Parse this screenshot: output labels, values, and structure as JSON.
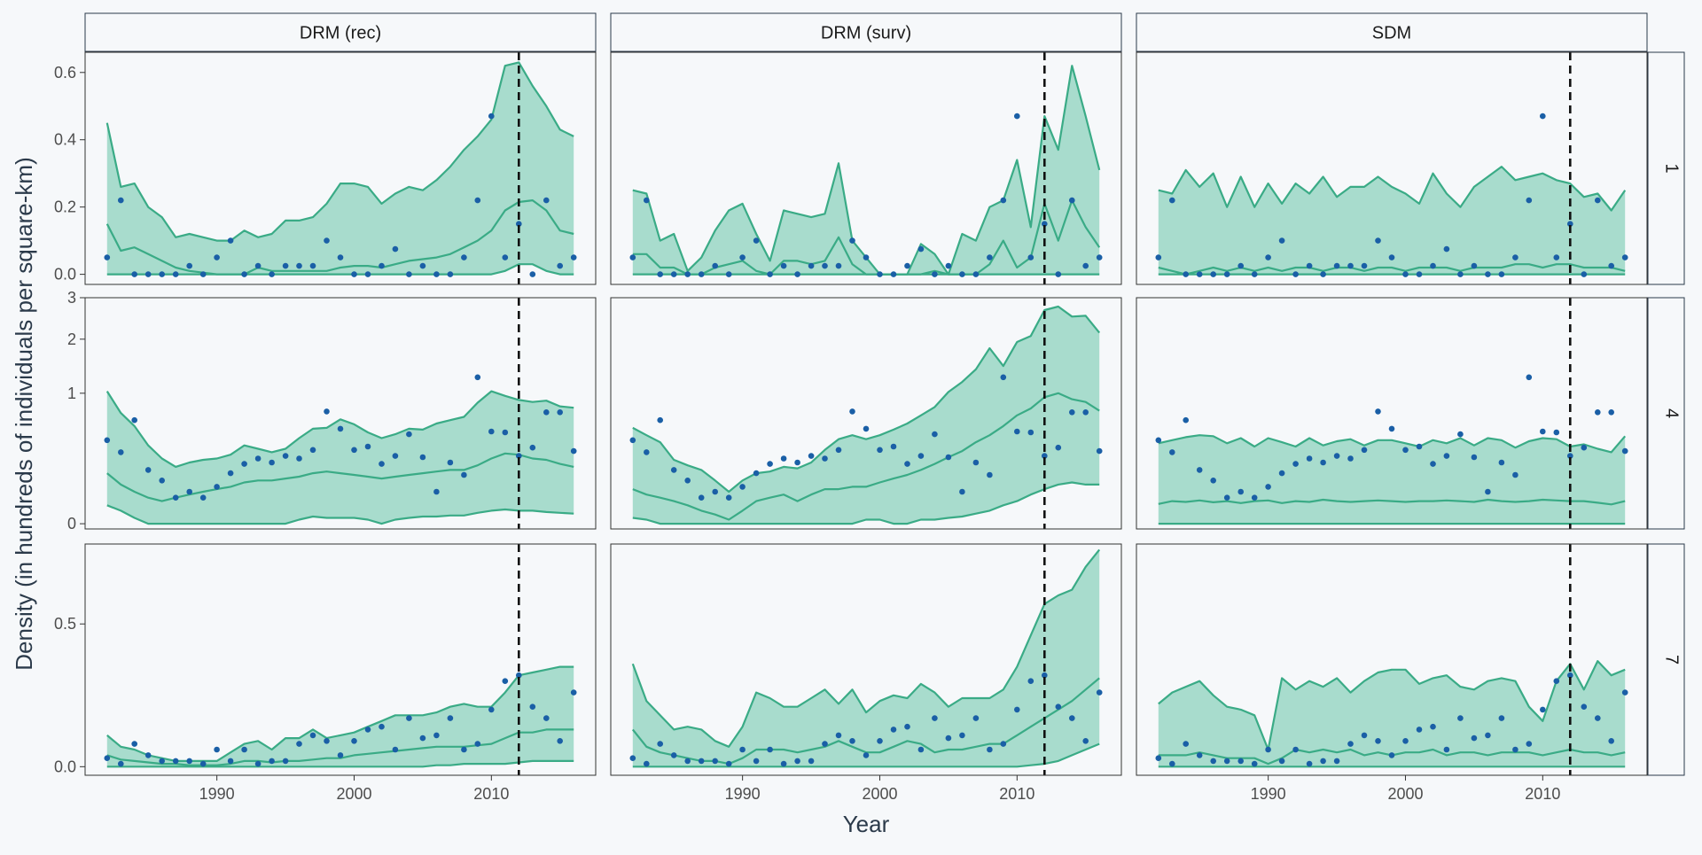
{
  "chart_data": {
    "type": "line",
    "xlabel": "Year",
    "ylabel": "Density (in hundreds of individuals per square-km)",
    "columns": [
      "DRM (rec)",
      "DRM (surv)",
      "SDM"
    ],
    "rows": [
      "1",
      "4",
      "7"
    ],
    "x_ticks": [
      1990,
      2000,
      2010
    ],
    "xlim": [
      1980.4,
      2017.6
    ],
    "vline_year": 2012,
    "y_scale_by_row": {
      "1": "linear",
      "4": "sqrt",
      "7": "linear"
    },
    "y_ticks_by_row": {
      "1": [
        0.0,
        0.2,
        0.4,
        0.6
      ],
      "4": [
        0,
        1,
        2,
        3
      ],
      "7": [
        0.0,
        0.5
      ]
    },
    "y_tick_labels_by_row": {
      "1": [
        "0.0",
        "0.2",
        "0.4",
        "0.6"
      ],
      "4": [
        "0",
        "1",
        "2",
        "3"
      ],
      "7": [
        "0.0",
        "0.5"
      ]
    },
    "ylim_by_row": {
      "1": [
        -0.03,
        0.66
      ],
      "4": [
        -0.02,
        3.0
      ],
      "7": [
        -0.03,
        0.78
      ]
    },
    "colors": {
      "ribbon": "#a8dccd",
      "line": "#3aab86",
      "points": "#1a5fa6",
      "vline": "#111111",
      "background": "#f6f8fa",
      "panel_border": "#333333"
    },
    "band_years": [
      1982,
      1983,
      1984,
      1985,
      1986,
      1987,
      1988,
      1989,
      1990,
      1991,
      1992,
      1993,
      1994,
      1995,
      1996,
      1997,
      1998,
      1999,
      2000,
      2001,
      2002,
      2003,
      2004,
      2005,
      2006,
      2007,
      2008,
      2009,
      2010,
      2011,
      2012,
      2013,
      2014,
      2015,
      2016
    ],
    "observed_years": [
      1982,
      1983,
      1984,
      1985,
      1986,
      1987,
      1988,
      1989,
      1990,
      1991,
      1992,
      1993,
      1994,
      1995,
      1996,
      1997,
      1998,
      1999,
      2000,
      2001,
      2002,
      2003,
      2004,
      2005,
      2006,
      2007,
      2008,
      2009,
      2010,
      2011,
      2012,
      2013,
      2014,
      2015,
      2016
    ],
    "observed": {
      "1": [
        0.05,
        0.22,
        0.0,
        0.0,
        0.0,
        0.0,
        0.025,
        0.0,
        0.05,
        0.1,
        0.0,
        0.025,
        0.0,
        0.025,
        0.025,
        0.025,
        0.1,
        0.05,
        0.0,
        0.0,
        0.025,
        0.075,
        0.0,
        0.025,
        0.0,
        0.0,
        0.05,
        0.22,
        0.47,
        0.05,
        0.15,
        0.0,
        0.22,
        0.025,
        0.05
      ],
      "4": [
        0.41,
        0.3,
        0.63,
        0.17,
        0.11,
        0.04,
        0.06,
        0.04,
        0.08,
        0.15,
        0.21,
        0.25,
        0.22,
        0.27,
        0.25,
        0.32,
        0.74,
        0.53,
        0.32,
        0.35,
        0.21,
        0.27,
        0.47,
        0.26,
        0.06,
        0.22,
        0.14,
        1.26,
        0.5,
        0.49,
        0.27,
        0.34,
        0.73,
        0.73,
        0.31
      ],
      "7": [
        0.03,
        0.01,
        0.08,
        0.04,
        0.02,
        0.02,
        0.02,
        0.01,
        0.06,
        0.02,
        0.06,
        0.01,
        0.02,
        0.02,
        0.08,
        0.11,
        0.09,
        0.04,
        0.09,
        0.13,
        0.14,
        0.06,
        0.17,
        0.1,
        0.11,
        0.17,
        0.06,
        0.08,
        0.2,
        0.3,
        0.32,
        0.21,
        0.17,
        0.09,
        0.26
      ]
    },
    "panels": [
      {
        "column": "DRM (rec)",
        "row": "1",
        "lower": [
          0.0,
          0.0,
          0.0,
          0.0,
          0.0,
          0.0,
          0.0,
          0.0,
          0.0,
          0.0,
          0.0,
          0.0,
          0.0,
          0.0,
          0.0,
          0.0,
          0.0,
          0.0,
          0.0,
          0.0,
          0.0,
          0.0,
          0.0,
          0.0,
          0.0,
          0.0,
          0.0,
          0.0,
          0.0,
          0.01,
          0.03,
          0.03,
          0.01,
          0.0,
          0.0
        ],
        "mid": [
          0.15,
          0.07,
          0.08,
          0.06,
          0.04,
          0.02,
          0.01,
          0.005,
          0.0,
          0.0,
          0.0,
          0.02,
          0.01,
          0.01,
          0.01,
          0.01,
          0.01,
          0.02,
          0.025,
          0.025,
          0.02,
          0.03,
          0.04,
          0.045,
          0.05,
          0.06,
          0.08,
          0.1,
          0.13,
          0.19,
          0.215,
          0.22,
          0.19,
          0.13,
          0.12
        ],
        "upper": [
          0.45,
          0.26,
          0.27,
          0.2,
          0.17,
          0.11,
          0.12,
          0.11,
          0.1,
          0.1,
          0.13,
          0.11,
          0.12,
          0.16,
          0.16,
          0.17,
          0.21,
          0.27,
          0.27,
          0.26,
          0.21,
          0.24,
          0.26,
          0.25,
          0.28,
          0.32,
          0.37,
          0.41,
          0.46,
          0.62,
          0.63,
          0.56,
          0.5,
          0.43,
          0.41
        ]
      },
      {
        "column": "DRM (surv)",
        "row": "1",
        "lower": [
          0.0,
          0.0,
          0.0,
          0.0,
          0.0,
          0.0,
          0.0,
          0.0,
          0.0,
          0.0,
          0.0,
          0.0,
          0.0,
          0.0,
          0.0,
          0.0,
          0.0,
          0.0,
          0.0,
          0.0,
          0.0,
          0.0,
          0.0,
          0.0,
          0.0,
          0.0,
          0.0,
          0.0,
          0.0,
          0.0,
          0.0,
          0.0,
          0.0,
          0.0,
          0.0
        ],
        "mid": [
          0.06,
          0.06,
          0.02,
          0.02,
          0.0,
          0.0,
          0.02,
          0.03,
          0.04,
          0.01,
          0.0,
          0.04,
          0.04,
          0.03,
          0.04,
          0.11,
          0.03,
          0.0,
          0.0,
          0.0,
          0.0,
          0.0,
          0.01,
          0.0,
          0.0,
          0.0,
          0.03,
          0.1,
          0.02,
          0.05,
          0.21,
          0.1,
          0.22,
          0.14,
          0.08
        ],
        "upper": [
          0.25,
          0.24,
          0.1,
          0.12,
          0.01,
          0.05,
          0.13,
          0.19,
          0.21,
          0.12,
          0.04,
          0.19,
          0.18,
          0.17,
          0.18,
          0.33,
          0.1,
          0.05,
          0.0,
          0.0,
          0.0,
          0.09,
          0.06,
          0.0,
          0.12,
          0.1,
          0.2,
          0.22,
          0.34,
          0.14,
          0.47,
          0.37,
          0.62,
          0.47,
          0.31
        ]
      },
      {
        "column": "SDM",
        "row": "1",
        "lower": [
          0.0,
          0.0,
          0.0,
          0.0,
          0.0,
          0.0,
          0.0,
          0.0,
          0.0,
          0.0,
          0.0,
          0.0,
          0.0,
          0.0,
          0.0,
          0.0,
          0.0,
          0.0,
          0.0,
          0.0,
          0.0,
          0.0,
          0.0,
          0.0,
          0.0,
          0.0,
          0.0,
          0.0,
          0.0,
          0.0,
          0.0,
          0.0,
          0.0,
          0.0,
          0.0
        ],
        "mid": [
          0.02,
          0.01,
          0.0,
          0.01,
          0.02,
          0.01,
          0.02,
          0.01,
          0.02,
          0.01,
          0.02,
          0.02,
          0.01,
          0.02,
          0.02,
          0.01,
          0.02,
          0.02,
          0.01,
          0.02,
          0.02,
          0.02,
          0.01,
          0.02,
          0.02,
          0.02,
          0.03,
          0.03,
          0.02,
          0.03,
          0.03,
          0.02,
          0.02,
          0.02,
          0.01
        ],
        "upper": [
          0.25,
          0.24,
          0.31,
          0.26,
          0.3,
          0.2,
          0.29,
          0.2,
          0.27,
          0.21,
          0.27,
          0.24,
          0.29,
          0.23,
          0.26,
          0.26,
          0.29,
          0.26,
          0.24,
          0.21,
          0.3,
          0.24,
          0.2,
          0.26,
          0.29,
          0.32,
          0.28,
          0.29,
          0.3,
          0.28,
          0.27,
          0.23,
          0.24,
          0.19,
          0.25
        ]
      },
      {
        "column": "DRM (rec)",
        "row": "4",
        "lower": [
          0.02,
          0.01,
          0.002,
          0.0,
          0.0,
          0.0,
          0.0,
          0.0,
          0.0,
          0.0,
          0.0,
          0.0,
          0.0,
          0.0,
          0.001,
          0.003,
          0.002,
          0.002,
          0.002,
          0.001,
          0.0,
          0.001,
          0.002,
          0.003,
          0.003,
          0.004,
          0.004,
          0.007,
          0.01,
          0.012,
          0.01,
          0.01,
          0.008,
          0.007,
          0.006
        ],
        "mid": [
          0.15,
          0.09,
          0.06,
          0.04,
          0.03,
          0.04,
          0.05,
          0.06,
          0.07,
          0.08,
          0.1,
          0.11,
          0.11,
          0.12,
          0.13,
          0.15,
          0.16,
          0.15,
          0.14,
          0.13,
          0.12,
          0.13,
          0.14,
          0.15,
          0.16,
          0.17,
          0.17,
          0.2,
          0.25,
          0.29,
          0.28,
          0.25,
          0.24,
          0.21,
          0.19
        ],
        "upper": [
          1.03,
          0.72,
          0.56,
          0.36,
          0.25,
          0.19,
          0.22,
          0.24,
          0.25,
          0.28,
          0.36,
          0.33,
          0.3,
          0.33,
          0.43,
          0.53,
          0.54,
          0.64,
          0.58,
          0.49,
          0.43,
          0.47,
          0.53,
          0.52,
          0.59,
          0.63,
          0.67,
          0.86,
          1.03,
          0.96,
          0.9,
          0.87,
          0.89,
          0.81,
          0.79
        ]
      },
      {
        "column": "DRM (surv)",
        "row": "4",
        "lower": [
          0.002,
          0.001,
          0.0,
          0.0,
          0.0,
          0.0,
          0.0,
          0.0,
          0.0,
          0.0,
          0.0,
          0.0,
          0.0,
          0.0,
          0.0,
          0.0,
          0.0,
          0.001,
          0.001,
          0.0,
          0.0,
          0.001,
          0.001,
          0.002,
          0.003,
          0.006,
          0.01,
          0.02,
          0.03,
          0.05,
          0.07,
          0.09,
          0.1,
          0.09,
          0.09
        ],
        "mid": [
          0.07,
          0.05,
          0.04,
          0.03,
          0.02,
          0.01,
          0.005,
          0.001,
          0.01,
          0.03,
          0.04,
          0.05,
          0.03,
          0.05,
          0.07,
          0.07,
          0.08,
          0.08,
          0.1,
          0.12,
          0.14,
          0.17,
          0.21,
          0.26,
          0.31,
          0.39,
          0.46,
          0.56,
          0.69,
          0.78,
          0.94,
          1.0,
          0.91,
          0.87,
          0.75
        ],
        "upper": [
          0.54,
          0.46,
          0.39,
          0.24,
          0.2,
          0.17,
          0.11,
          0.06,
          0.11,
          0.15,
          0.16,
          0.19,
          0.18,
          0.22,
          0.32,
          0.42,
          0.46,
          0.42,
          0.46,
          0.52,
          0.59,
          0.69,
          0.8,
          1.02,
          1.18,
          1.4,
          1.81,
          1.46,
          1.94,
          2.07,
          2.68,
          2.77,
          2.52,
          2.54,
          2.14
        ]
      },
      {
        "column": "SDM",
        "row": "4",
        "lower": [
          0.0,
          0.0,
          0.0,
          0.0,
          0.0,
          0.0,
          0.0,
          0.0,
          0.0,
          0.0,
          0.0,
          0.0,
          0.0,
          0.0,
          0.0,
          0.0,
          0.0,
          0.0,
          0.0,
          0.0,
          0.0,
          0.0,
          0.0,
          0.0,
          0.0,
          0.0,
          0.0,
          0.0,
          0.0,
          0.0,
          0.0,
          0.0,
          0.0,
          0.0,
          0.0
        ],
        "mid": [
          0.023,
          0.03,
          0.028,
          0.032,
          0.027,
          0.03,
          0.025,
          0.03,
          0.032,
          0.025,
          0.03,
          0.028,
          0.034,
          0.03,
          0.028,
          0.03,
          0.032,
          0.03,
          0.028,
          0.03,
          0.03,
          0.032,
          0.03,
          0.028,
          0.034,
          0.03,
          0.028,
          0.03,
          0.034,
          0.032,
          0.03,
          0.03,
          0.026,
          0.022,
          0.03
        ],
        "upper": [
          0.38,
          0.41,
          0.44,
          0.46,
          0.45,
          0.38,
          0.43,
          0.35,
          0.43,
          0.39,
          0.35,
          0.43,
          0.36,
          0.4,
          0.42,
          0.36,
          0.41,
          0.41,
          0.38,
          0.35,
          0.41,
          0.38,
          0.43,
          0.36,
          0.43,
          0.41,
          0.34,
          0.4,
          0.43,
          0.42,
          0.35,
          0.37,
          0.33,
          0.3,
          0.45
        ]
      },
      {
        "column": "DRM (rec)",
        "row": "7",
        "lower": [
          0.0,
          0.0,
          0.0,
          0.0,
          0.0,
          0.0,
          0.0,
          0.0,
          0.0,
          0.0,
          0.0,
          0.0,
          0.0,
          0.0,
          0.0,
          0.0,
          0.0,
          0.0,
          0.0,
          0.0,
          0.0,
          0.0,
          0.0,
          0.0,
          0.005,
          0.005,
          0.01,
          0.01,
          0.01,
          0.01,
          0.015,
          0.02,
          0.02,
          0.02,
          0.02
        ],
        "mid": [
          0.04,
          0.025,
          0.02,
          0.015,
          0.01,
          0.01,
          0.005,
          0.005,
          0.005,
          0.01,
          0.02,
          0.02,
          0.015,
          0.02,
          0.02,
          0.025,
          0.03,
          0.03,
          0.04,
          0.045,
          0.05,
          0.055,
          0.06,
          0.065,
          0.07,
          0.07,
          0.07,
          0.075,
          0.08,
          0.1,
          0.12,
          0.12,
          0.13,
          0.13,
          0.13
        ],
        "upper": [
          0.11,
          0.07,
          0.06,
          0.04,
          0.03,
          0.02,
          0.02,
          0.02,
          0.02,
          0.05,
          0.08,
          0.09,
          0.06,
          0.1,
          0.1,
          0.13,
          0.1,
          0.11,
          0.12,
          0.14,
          0.16,
          0.18,
          0.18,
          0.18,
          0.19,
          0.21,
          0.22,
          0.21,
          0.21,
          0.26,
          0.32,
          0.33,
          0.34,
          0.35,
          0.35
        ]
      },
      {
        "column": "DRM (surv)",
        "row": "7",
        "lower": [
          0.0,
          0.0,
          0.0,
          0.0,
          0.0,
          0.0,
          0.0,
          0.0,
          0.0,
          0.0,
          0.0,
          0.0,
          0.0,
          0.0,
          0.0,
          0.0,
          0.0,
          0.0,
          0.0,
          0.0,
          0.0,
          0.0,
          0.0,
          0.0,
          0.0,
          0.0,
          0.0,
          0.0,
          0.0,
          0.005,
          0.01,
          0.02,
          0.04,
          0.06,
          0.08
        ],
        "mid": [
          0.13,
          0.07,
          0.05,
          0.04,
          0.03,
          0.02,
          0.02,
          0.01,
          0.03,
          0.06,
          0.06,
          0.06,
          0.05,
          0.06,
          0.07,
          0.09,
          0.07,
          0.05,
          0.05,
          0.07,
          0.09,
          0.08,
          0.05,
          0.06,
          0.06,
          0.07,
          0.08,
          0.08,
          0.11,
          0.14,
          0.17,
          0.2,
          0.23,
          0.27,
          0.31
        ],
        "upper": [
          0.36,
          0.23,
          0.18,
          0.13,
          0.14,
          0.13,
          0.09,
          0.07,
          0.14,
          0.26,
          0.24,
          0.21,
          0.21,
          0.24,
          0.27,
          0.22,
          0.27,
          0.19,
          0.23,
          0.25,
          0.24,
          0.29,
          0.26,
          0.21,
          0.24,
          0.24,
          0.24,
          0.27,
          0.35,
          0.46,
          0.57,
          0.6,
          0.62,
          0.7,
          0.76
        ]
      },
      {
        "column": "SDM",
        "row": "7",
        "lower": [
          0.0,
          0.0,
          0.0,
          0.0,
          0.0,
          0.0,
          0.0,
          0.0,
          0.0,
          0.0,
          0.0,
          0.0,
          0.0,
          0.0,
          0.0,
          0.0,
          0.0,
          0.0,
          0.0,
          0.0,
          0.0,
          0.0,
          0.0,
          0.0,
          0.0,
          0.0,
          0.0,
          0.0,
          0.0,
          0.0,
          0.0,
          0.0,
          0.0,
          0.0,
          0.0
        ],
        "mid": [
          0.04,
          0.04,
          0.04,
          0.05,
          0.04,
          0.03,
          0.03,
          0.03,
          0.01,
          0.03,
          0.06,
          0.05,
          0.06,
          0.05,
          0.06,
          0.04,
          0.05,
          0.04,
          0.05,
          0.05,
          0.06,
          0.04,
          0.05,
          0.05,
          0.04,
          0.05,
          0.05,
          0.05,
          0.04,
          0.05,
          0.06,
          0.05,
          0.05,
          0.04,
          0.05
        ],
        "upper": [
          0.22,
          0.26,
          0.28,
          0.3,
          0.25,
          0.21,
          0.2,
          0.18,
          0.06,
          0.31,
          0.27,
          0.3,
          0.28,
          0.31,
          0.26,
          0.3,
          0.33,
          0.34,
          0.34,
          0.29,
          0.31,
          0.32,
          0.28,
          0.27,
          0.3,
          0.31,
          0.3,
          0.21,
          0.16,
          0.3,
          0.36,
          0.27,
          0.37,
          0.32,
          0.34
        ]
      }
    ]
  }
}
